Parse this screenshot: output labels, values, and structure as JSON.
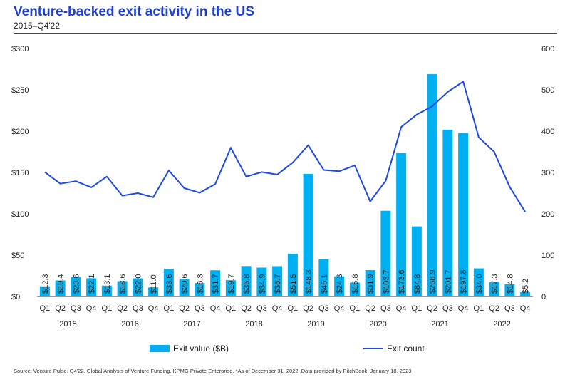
{
  "header": {
    "title": "Venture-backed exit activity in the US",
    "subtitle": "2015–Q4'22"
  },
  "source": "Source: Venture Pulse, Q4'22, Global Analysis of Venture Funding, KPMG Private Enterprise. *As of December 31, 2022. Data provided by PitchBook, January 18, 2023",
  "colors": {
    "bar": "#00b0f0",
    "line": "#1e49e2",
    "title": "#1f3fcf"
  },
  "chart_data": {
    "type": "bar",
    "quarters": [
      "Q1",
      "Q2",
      "Q3",
      "Q4",
      "Q1",
      "Q2",
      "Q3",
      "Q4",
      "Q1",
      "Q2",
      "Q3",
      "Q4",
      "Q1",
      "Q2",
      "Q3",
      "Q4",
      "Q1",
      "Q2",
      "Q3",
      "Q4",
      "Q1",
      "Q2",
      "Q3",
      "Q4",
      "Q1",
      "Q2",
      "Q3",
      "Q4",
      "Q1",
      "Q2",
      "Q3",
      "Q4"
    ],
    "years": [
      "2015",
      "2016",
      "2017",
      "2018",
      "2019",
      "2020",
      "2021",
      "2022"
    ],
    "series": [
      {
        "name": "Exit value ($B)",
        "type": "bar",
        "axis": "left",
        "values": [
          12.3,
          19.4,
          23.6,
          22.1,
          13.1,
          18.6,
          22.0,
          11.0,
          33.6,
          20.6,
          16.3,
          31.7,
          19.7,
          36.8,
          34.9,
          36.7,
          51.5,
          148.3,
          45.1,
          24.3,
          16.8,
          31.9,
          103.7,
          173.6,
          84.8,
          268.9,
          201.7,
          197.8,
          34.0,
          17.3,
          14.8,
          5.2
        ],
        "labels": [
          "$12.3",
          "$19.4",
          "$23.6",
          "$22.1",
          "$13.1",
          "$18.6",
          "$22.0",
          "$11.0",
          "$33.6",
          "$20.6",
          "$16.3",
          "$31.7",
          "$19.7",
          "$36.8",
          "$34.9",
          "$36.7",
          "$51.5",
          "$148.3",
          "$45.1",
          "$24.3",
          "$16.8",
          "$31.9",
          "$103.7",
          "$173.6",
          "$84.8",
          "$268.9",
          "$201.7",
          "$197.8",
          "$34.0",
          "$17.3",
          "$14.8",
          "$5.2"
        ]
      },
      {
        "name": "Exit count",
        "type": "line",
        "axis": "right",
        "values": [
          301,
          273,
          279,
          264,
          290,
          244,
          250,
          240,
          305,
          262,
          251,
          272,
          360,
          290,
          301,
          295,
          324,
          366,
          306,
          303,
          317,
          230,
          280,
          410,
          440,
          460,
          495,
          520,
          385,
          350,
          265,
          205
        ]
      }
    ],
    "left_axis": {
      "ticks": [
        "$0",
        "$50",
        "$100",
        "$150",
        "$200",
        "$250",
        "$300"
      ],
      "ylim": [
        0,
        300
      ]
    },
    "right_axis": {
      "ticks": [
        "0",
        "100",
        "200",
        "300",
        "400",
        "500",
        "600"
      ],
      "ylim": [
        0,
        600
      ]
    },
    "legend_placement": "bottom",
    "grid": false
  }
}
